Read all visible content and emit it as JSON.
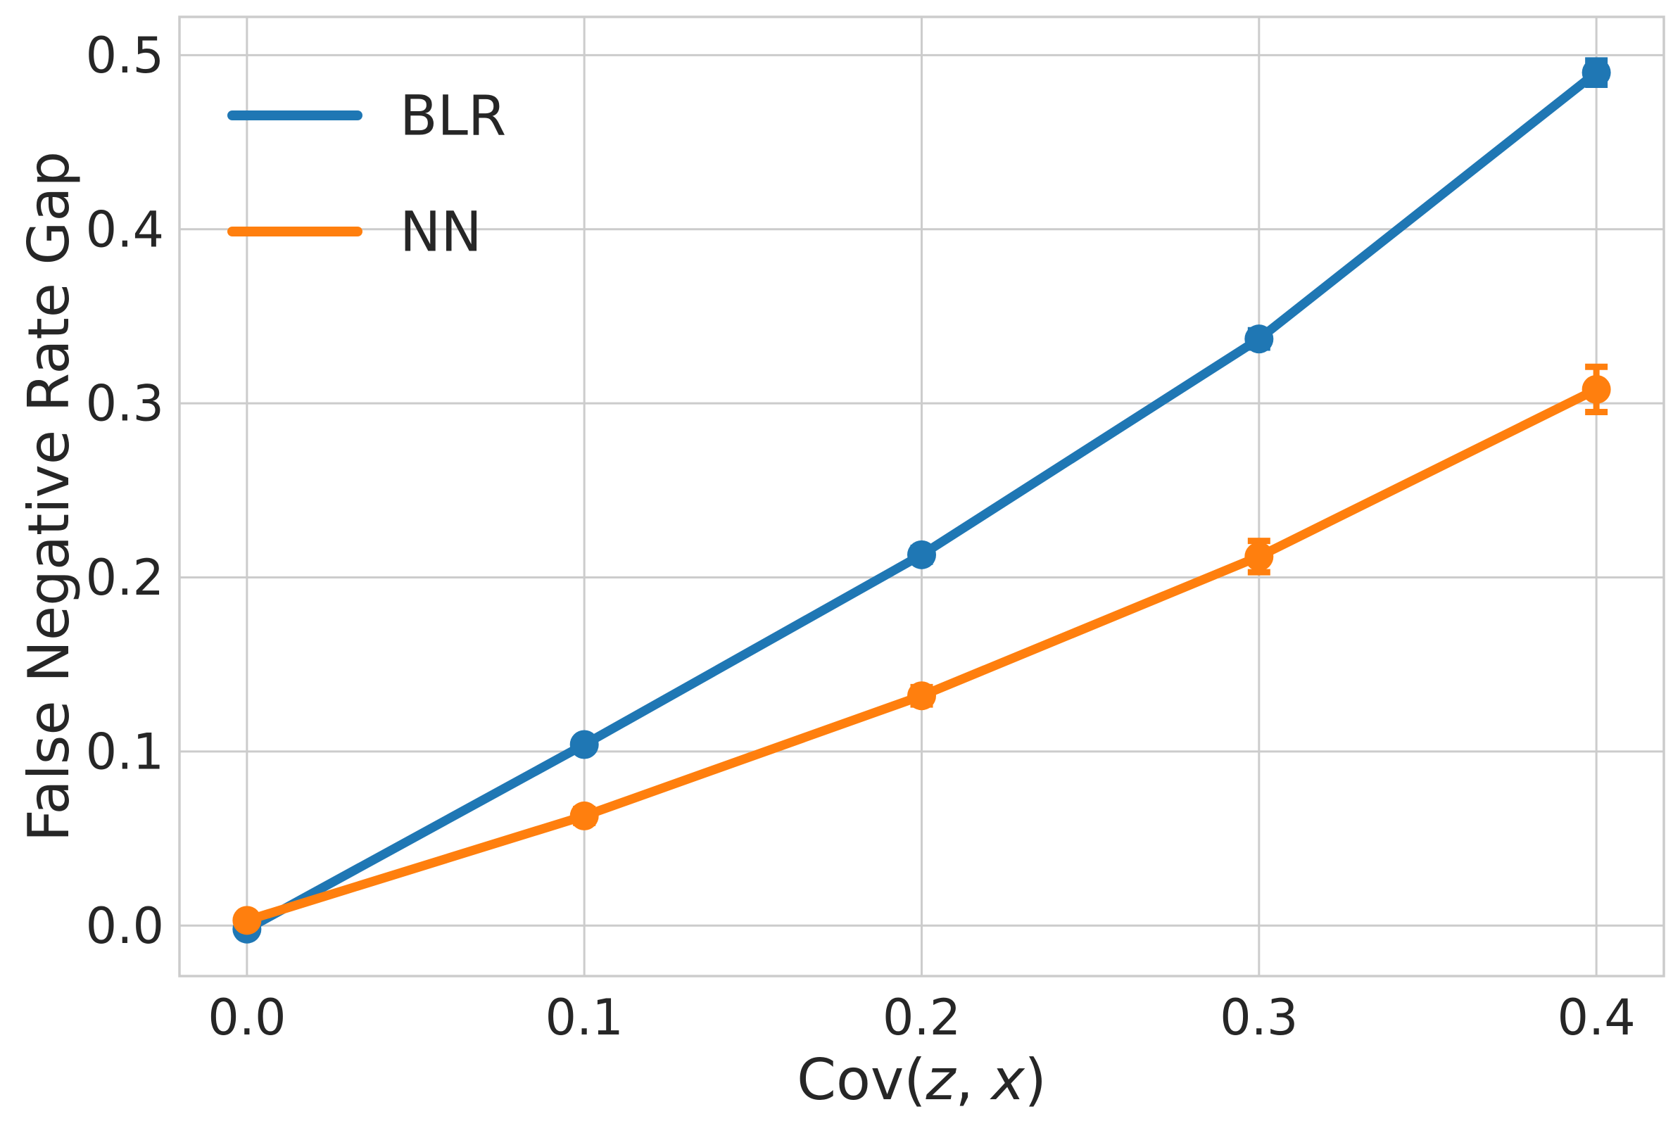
{
  "style": {
    "background": "#ffffff",
    "grid_color": "#cccccc",
    "spine_color": "#cccccc",
    "text_color": "#262626",
    "blr_color": "#1f77b4",
    "nn_color": "#ff7f0e"
  },
  "chart_data": {
    "type": "line",
    "title": "",
    "xlabel": "Cov(z, x)",
    "xlabel_parts": [
      {
        "text": "Cov(",
        "italic": false
      },
      {
        "text": "z",
        "italic": true
      },
      {
        "text": ", ",
        "italic": false
      },
      {
        "text": "x",
        "italic": true
      },
      {
        "text": ")",
        "italic": false
      }
    ],
    "ylabel": "False Negative Rate Gap",
    "x": [
      0.0,
      0.1,
      0.2,
      0.3,
      0.4
    ],
    "xtick_labels": [
      "0.0",
      "0.1",
      "0.2",
      "0.3",
      "0.4"
    ],
    "ytick_values": [
      0.0,
      0.1,
      0.2,
      0.3,
      0.4,
      0.5
    ],
    "ytick_labels": [
      "0.0",
      "0.1",
      "0.2",
      "0.3",
      "0.4",
      "0.5"
    ],
    "xlim": [
      -0.02,
      0.42
    ],
    "ylim": [
      -0.029,
      0.522
    ],
    "grid": true,
    "legend_position": "upper left",
    "series": [
      {
        "name": "BLR",
        "color": "#1f77b4",
        "values": [
          -0.002,
          0.104,
          0.213,
          0.337,
          0.49
        ],
        "yerr": [
          0.003,
          0.003,
          0.004,
          0.005,
          0.007
        ]
      },
      {
        "name": "NN",
        "color": "#ff7f0e",
        "values": [
          0.003,
          0.063,
          0.132,
          0.212,
          0.308
        ],
        "yerr": [
          0.003,
          0.004,
          0.005,
          0.009,
          0.013
        ]
      }
    ]
  }
}
